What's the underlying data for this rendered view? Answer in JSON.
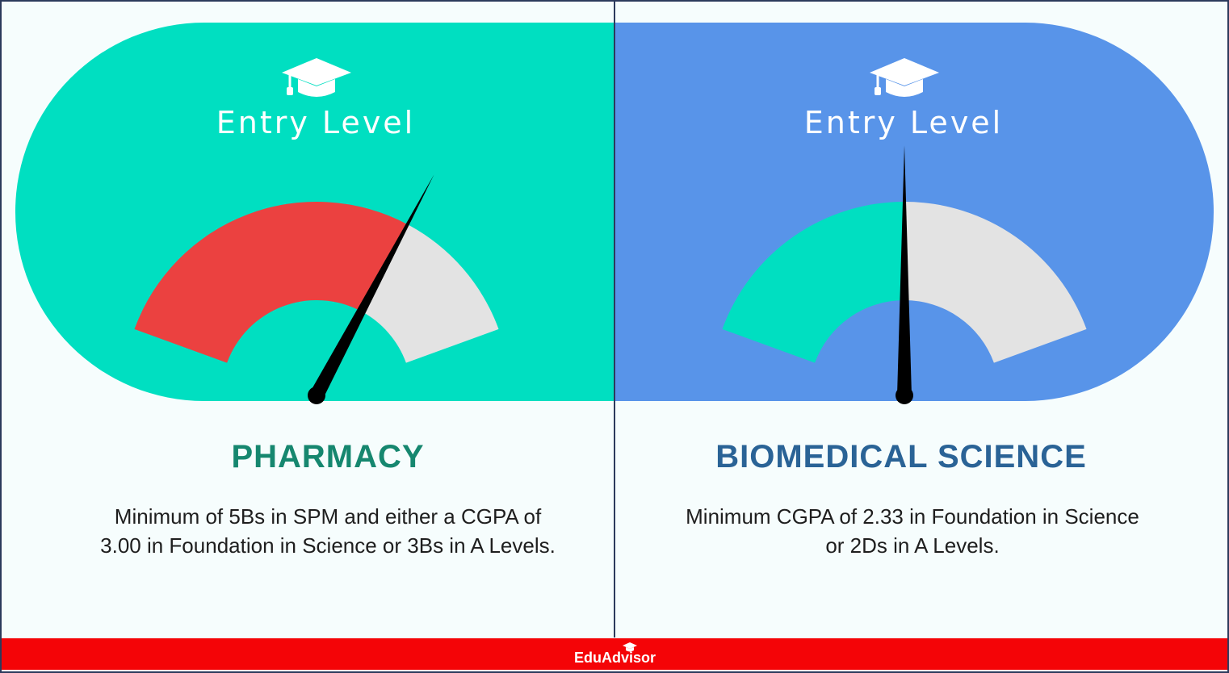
{
  "colors": {
    "left_background": "#00dfc1",
    "right_background": "#5894e9",
    "gauge_red": "#eb4140",
    "gauge_teal": "#00dfc1",
    "gauge_grey": "#e3e3e3",
    "footer_red": "#f40407"
  },
  "left": {
    "icon": "graduation-cap-icon",
    "heading": "Entry Level",
    "gauge_level_percent": 70,
    "title": "PHARMACY",
    "description_line1": "Minimum of 5Bs in SPM and either a CGPA of",
    "description_line2": "3.00 in Foundation in Science or 3Bs in A Levels."
  },
  "right": {
    "icon": "graduation-cap-icon",
    "heading": "Entry Level",
    "gauge_level_percent": 50,
    "title": "BIOMEDICAL SCIENCE",
    "description_line1": "Minimum CGPA of 2.33 in Foundation in Science",
    "description_line2": "or 2Ds in A Levels."
  },
  "footer": {
    "brand": "EduAdvisor"
  }
}
